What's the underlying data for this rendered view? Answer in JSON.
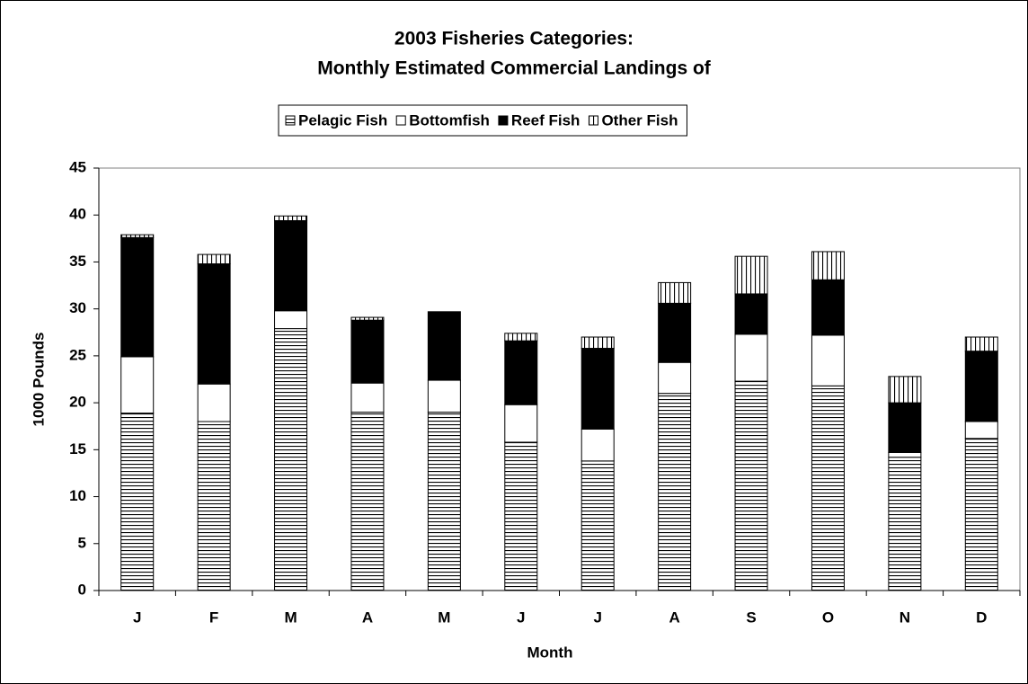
{
  "chart_data": {
    "type": "stacked_bar",
    "title": [
      "2003 Fisheries Categories:",
      "Monthly Estimated Commercial Landings of"
    ],
    "x_label": "Month",
    "y_label": "1000 Pounds",
    "categories": [
      "J",
      "F",
      "M",
      "A",
      "M",
      "J",
      "J",
      "A",
      "S",
      "O",
      "N",
      "D"
    ],
    "series": [
      {
        "name": "Pelagic Fish",
        "color": "#000000",
        "pattern": "horizontal",
        "values": [
          18.9,
          18.0,
          27.9,
          19.0,
          19.0,
          15.8,
          13.8,
          21.0,
          22.3,
          21.8,
          14.2,
          16.2
        ]
      },
      {
        "name": "Bottomfish",
        "color": "#ffffff",
        "pattern": "solid",
        "values": [
          6.0,
          4.0,
          1.9,
          3.1,
          3.4,
          4.0,
          3.4,
          3.3,
          5.0,
          5.4,
          0.5,
          1.8
        ]
      },
      {
        "name": "Reef Fish",
        "color": "#000000",
        "pattern": "solid",
        "values": [
          12.7,
          12.8,
          9.6,
          6.7,
          7.3,
          6.8,
          8.6,
          6.3,
          4.3,
          5.9,
          5.3,
          7.5
        ]
      },
      {
        "name": "Other Fish",
        "color": "#000000",
        "pattern": "vertical",
        "values": [
          0.3,
          1.0,
          0.5,
          0.3,
          0,
          0.8,
          1.2,
          2.2,
          4.0,
          3.0,
          2.8,
          1.5
        ]
      }
    ],
    "ylim": [
      0,
      45
    ],
    "yticks": [
      0,
      5,
      10,
      15,
      20,
      25,
      30,
      35,
      40,
      45
    ],
    "legend": "top"
  }
}
